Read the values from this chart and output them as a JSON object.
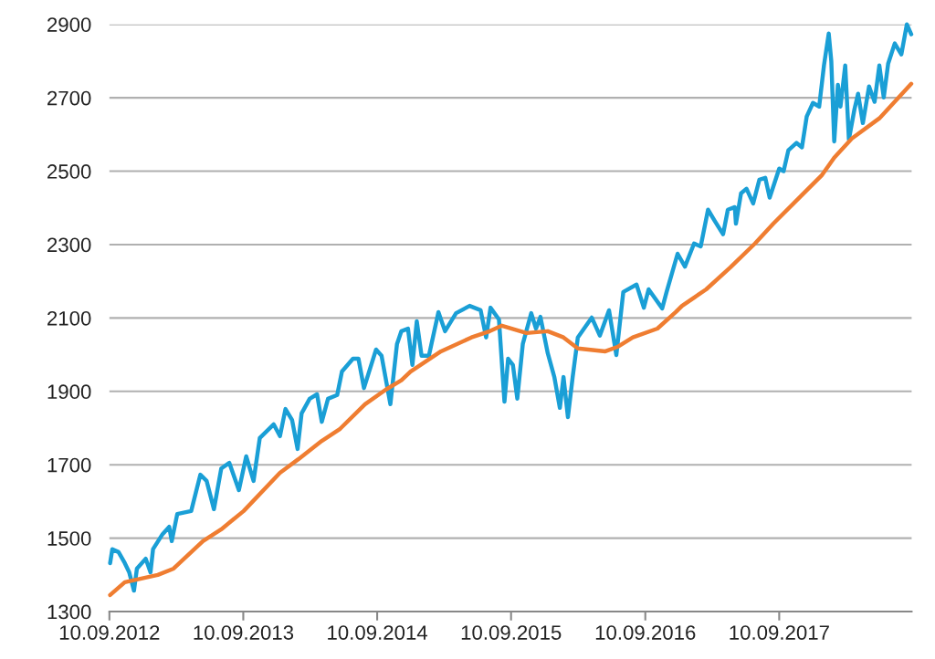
{
  "chart_data": {
    "type": "line",
    "xlim": [
      "2012-09-10",
      "2018-09-06"
    ],
    "xticks": [
      {
        "value": "2012-09-10",
        "label": "10.09.2012"
      },
      {
        "value": "2013-09-10",
        "label": "10.09.2013"
      },
      {
        "value": "2014-09-10",
        "label": "10.09.2014"
      },
      {
        "value": "2015-09-10",
        "label": "10.09.2015"
      },
      {
        "value": "2016-09-10",
        "label": "10.09.2016"
      },
      {
        "value": "2017-09-10",
        "label": "10.09.2017"
      }
    ],
    "ylim": [
      1300,
      2900
    ],
    "yticks": [
      1300,
      1500,
      1700,
      1900,
      2100,
      2300,
      2500,
      2700,
      2900
    ],
    "grid": "y",
    "legend": false,
    "marker": "none",
    "line_style": "solid",
    "series": [
      {
        "color": "#1a9fd6",
        "x": [
          "2012-09-12",
          "2012-09-18",
          "2012-10-05",
          "2012-10-22",
          "2012-11-03",
          "2012-11-16",
          "2012-11-24",
          "2012-12-18",
          "2012-12-31",
          "2013-01-07",
          "2013-02-02",
          "2013-02-20",
          "2013-02-27",
          "2013-03-14",
          "2013-04-21",
          "2013-05-16",
          "2013-06-02",
          "2013-06-22",
          "2013-07-12",
          "2013-08-03",
          "2013-08-29",
          "2013-09-18",
          "2013-10-08",
          "2013-10-25",
          "2013-12-02",
          "2013-12-19",
          "2014-01-03",
          "2014-01-21",
          "2014-02-05",
          "2014-02-16",
          "2014-03-10",
          "2014-03-30",
          "2014-04-12",
          "2014-04-29",
          "2014-05-24",
          "2014-06-06",
          "2014-07-06",
          "2014-07-21",
          "2014-08-05",
          "2014-09-07",
          "2014-09-22",
          "2014-10-16",
          "2014-11-03",
          "2014-11-15",
          "2014-12-03",
          "2014-12-15",
          "2014-12-27",
          "2015-01-09",
          "2015-01-29",
          "2015-02-24",
          "2015-03-14",
          "2015-04-13",
          "2015-05-20",
          "2015-06-19",
          "2015-07-04",
          "2015-07-16",
          "2015-08-08",
          "2015-08-23",
          "2015-09-02",
          "2015-09-15",
          "2015-09-27",
          "2015-10-12",
          "2015-11-04",
          "2015-11-17",
          "2015-11-29",
          "2015-12-19",
          "2016-01-06",
          "2016-01-21",
          "2016-01-31",
          "2016-02-12",
          "2016-02-25",
          "2016-03-10",
          "2016-03-27",
          "2016-04-17",
          "2016-05-09",
          "2016-06-03",
          "2016-06-23",
          "2016-07-12",
          "2016-08-17",
          "2016-09-06",
          "2016-09-19",
          "2016-10-26",
          "2016-11-07",
          "2016-12-07",
          "2016-12-27",
          "2017-01-21",
          "2017-02-08",
          "2017-02-28",
          "2017-03-18",
          "2017-04-10",
          "2017-04-23",
          "2017-05-12",
          "2017-05-15",
          "2017-05-29",
          "2017-06-13",
          "2017-07-01",
          "2017-07-18",
          "2017-08-03",
          "2017-08-15",
          "2017-09-10",
          "2017-09-22",
          "2017-10-05",
          "2017-10-27",
          "2017-11-11",
          "2017-11-24",
          "2017-12-11",
          "2017-12-28",
          "2018-01-10",
          "2018-01-23",
          "2018-01-30",
          "2018-02-07",
          "2018-02-17",
          "2018-02-24",
          "2018-03-09",
          "2018-03-19",
          "2018-04-03",
          "2018-04-13",
          "2018-04-26",
          "2018-05-13",
          "2018-05-28",
          "2018-06-10",
          "2018-06-22",
          "2018-07-04",
          "2018-07-22",
          "2018-08-09",
          "2018-08-24",
          "2018-09-05"
        ],
        "values": [
          1432,
          1470,
          1462,
          1432,
          1407,
          1357,
          1417,
          1444,
          1407,
          1470,
          1511,
          1531,
          1492,
          1566,
          1574,
          1673,
          1656,
          1579,
          1690,
          1705,
          1631,
          1723,
          1656,
          1773,
          1810,
          1778,
          1852,
          1822,
          1743,
          1840,
          1880,
          1892,
          1817,
          1880,
          1890,
          1954,
          1989,
          1989,
          1909,
          2014,
          1997,
          1865,
          2029,
          2064,
          2071,
          1972,
          2091,
          1997,
          1997,
          2116,
          2064,
          2113,
          2133,
          2121,
          2047,
          2128,
          2096,
          1872,
          1989,
          1972,
          1880,
          2029,
          2113,
          2071,
          2103,
          2004,
          1939,
          1855,
          1939,
          1830,
          1939,
          2047,
          2071,
          2101,
          2052,
          2121,
          1999,
          2171,
          2191,
          2128,
          2178,
          2126,
          2171,
          2275,
          2240,
          2303,
          2295,
          2395,
          2365,
          2328,
          2395,
          2402,
          2357,
          2440,
          2452,
          2412,
          2477,
          2482,
          2428,
          2507,
          2500,
          2557,
          2577,
          2565,
          2649,
          2686,
          2676,
          2788,
          2875,
          2800,
          2581,
          2735,
          2676,
          2788,
          2586,
          2668,
          2711,
          2631,
          2731,
          2689,
          2788,
          2701,
          2793,
          2848,
          2818,
          2900,
          2873
        ]
      },
      {
        "color": "#ef7d31",
        "x": [
          "2012-09-12",
          "2012-10-22",
          "2013-01-20",
          "2013-03-04",
          "2013-05-23",
          "2013-07-12",
          "2013-09-11",
          "2013-12-19",
          "2014-02-07",
          "2014-04-12",
          "2014-06-01",
          "2014-08-08",
          "2014-10-04",
          "2014-11-15",
          "2014-12-10",
          "2015-03-03",
          "2015-05-25",
          "2015-07-14",
          "2015-08-16",
          "2015-10-22",
          "2015-12-19",
          "2016-01-31",
          "2016-03-10",
          "2016-05-24",
          "2016-06-28",
          "2016-08-07",
          "2016-10-13",
          "2016-12-02",
          "2016-12-19",
          "2017-02-23",
          "2017-04-30",
          "2017-07-06",
          "2017-08-25",
          "2017-11-08",
          "2018-01-05",
          "2018-02-07",
          "2018-03-27",
          "2018-06-10",
          "2018-09-05"
        ],
        "values": [
          1345,
          1380,
          1400,
          1417,
          1492,
          1524,
          1574,
          1678,
          1715,
          1765,
          1798,
          1865,
          1905,
          1930,
          1954,
          2009,
          2047,
          2064,
          2079,
          2059,
          2064,
          2047,
          2017,
          2009,
          2022,
          2047,
          2071,
          2116,
          2133,
          2178,
          2238,
          2303,
          2357,
          2432,
          2490,
          2537,
          2589,
          2644,
          2738
        ]
      }
    ]
  }
}
